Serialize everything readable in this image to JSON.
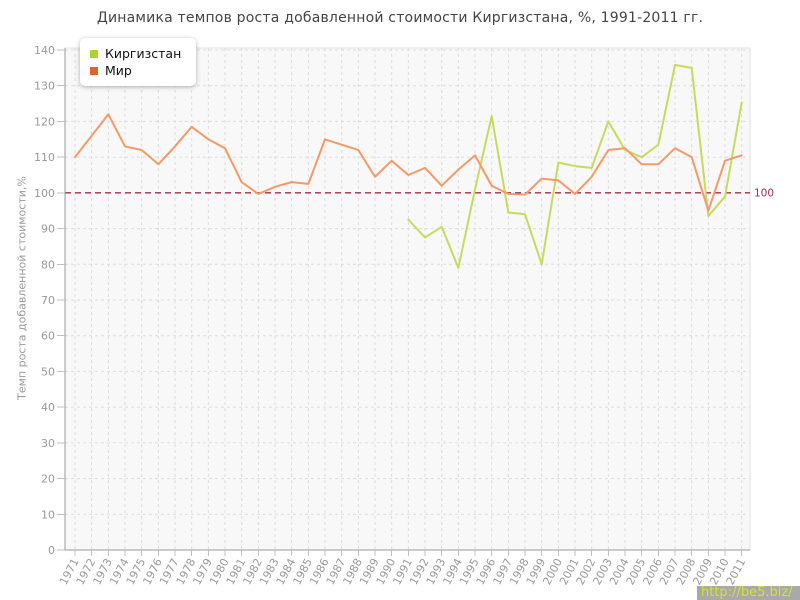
{
  "title": "Динамика темпов роста добавленной стоимости Киргизстана, %, 1991-2011 гг.",
  "y_axis_label": "Темп роста добавленной стоимости,%",
  "watermark": "http://be5.biz/",
  "legend": [
    {
      "label": "Киргизстан",
      "color": "#aed232"
    },
    {
      "label": "Мир",
      "color": "#e2612b"
    }
  ],
  "reference_line": {
    "value": 100,
    "label": "100",
    "color": "#9e3145"
  },
  "colors": {
    "plot_background": "#f8f8f8",
    "plot_border": "#e2e2e2",
    "grid": "#dcdcdc",
    "axis": "#999999",
    "tick": "#c0c0c0",
    "tick_label": "#999999",
    "title_text": "#444444",
    "kyrgyzstan_line": "#c8da5e",
    "world_line": "#f39a68"
  },
  "chart_data": {
    "type": "line",
    "title": "Динамика темпов роста добавленной стоимости Киргизстана, %, 1991-2011 гг.",
    "xlabel": "",
    "ylabel": "Темп роста добавленной стоимости,%",
    "ylim": [
      0,
      140
    ],
    "ytick_step": 10,
    "grid": true,
    "legend_position": "top-left",
    "reference_value": 100,
    "x": [
      1971,
      1972,
      1973,
      1974,
      1975,
      1976,
      1977,
      1978,
      1979,
      1980,
      1981,
      1982,
      1983,
      1984,
      1985,
      1986,
      1987,
      1988,
      1989,
      1990,
      1991,
      1992,
      1993,
      1994,
      1995,
      1996,
      1997,
      1998,
      1999,
      2000,
      2001,
      2002,
      2003,
      2004,
      2005,
      2006,
      2007,
      2008,
      2009,
      2010,
      2011
    ],
    "series": [
      {
        "name": "Киргизстан",
        "values": [
          null,
          null,
          null,
          null,
          null,
          null,
          null,
          null,
          null,
          null,
          null,
          null,
          null,
          null,
          null,
          null,
          null,
          null,
          null,
          null,
          92.5,
          87.5,
          90.5,
          79,
          101,
          121.5,
          94.5,
          94,
          80,
          108.5,
          107.5,
          107,
          120,
          112,
          110,
          113.5,
          135.8,
          135,
          93.5,
          99,
          125.3
        ]
      },
      {
        "name": "Мир",
        "values": [
          110,
          116,
          122,
          113,
          112,
          108,
          113,
          118.5,
          115,
          112.5,
          103,
          99.7,
          101.7,
          103,
          102.5,
          115,
          113.5,
          112,
          104.5,
          109,
          105,
          107,
          102,
          106.5,
          110.5,
          102,
          99.7,
          99.5,
          104,
          103.5,
          99.7,
          104.5,
          112,
          112.5,
          108,
          108,
          112.5,
          110,
          95,
          109,
          110.5
        ]
      }
    ]
  }
}
